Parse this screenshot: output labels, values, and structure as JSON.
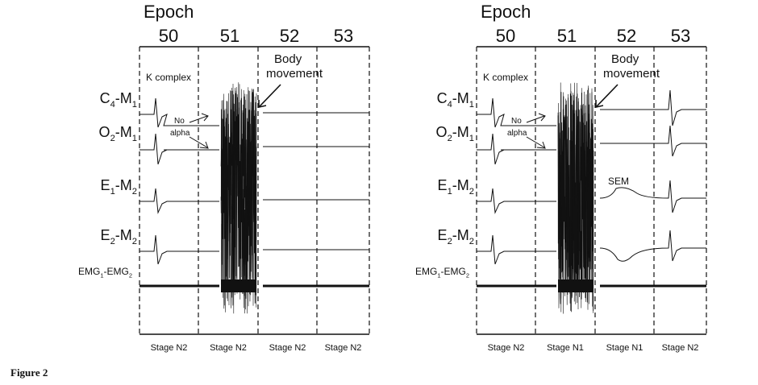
{
  "figure_caption": "Figure 2",
  "panels": [
    {
      "epoch_heading": "Epoch",
      "epochs": [
        "50",
        "51",
        "52",
        "53"
      ],
      "stages": [
        "Stage N2",
        "Stage N2",
        "Stage N2",
        "Stage N2"
      ],
      "annotations": {
        "k_complex": "K complex",
        "body_movement_line1": "Body",
        "body_movement_line2": "movement",
        "no_alpha_line1": "No",
        "no_alpha_line2": "alpha"
      },
      "channels": [
        {
          "main": "C",
          "sub1": "4",
          "mid": "-M",
          "sub2": "1"
        },
        {
          "main": "O",
          "sub1": "2",
          "mid": "-M",
          "sub2": "1"
        },
        {
          "main": "E",
          "sub1": "1",
          "mid": "-M",
          "sub2": "2"
        },
        {
          "main": "E",
          "sub1": "2",
          "mid": "-M",
          "sub2": "2"
        },
        {
          "main": "EMG",
          "sub1": "1",
          "mid": "-EMG",
          "sub2": "2"
        }
      ]
    },
    {
      "epoch_heading": "Epoch",
      "epochs": [
        "50",
        "51",
        "52",
        "53"
      ],
      "stages": [
        "Stage N2",
        "Stage N1",
        "Stage N1",
        "Stage N2"
      ],
      "annotations": {
        "k_complex": "K complex",
        "body_movement_line1": "Body",
        "body_movement_line2": "movement",
        "no_alpha_line1": "No",
        "no_alpha_line2": "alpha",
        "sem": "SEM"
      },
      "channels": [
        {
          "main": "C",
          "sub1": "4",
          "mid": "-M",
          "sub2": "1"
        },
        {
          "main": "O",
          "sub1": "2",
          "mid": "-M",
          "sub2": "1"
        },
        {
          "main": "E",
          "sub1": "1",
          "mid": "-M",
          "sub2": "2"
        },
        {
          "main": "E",
          "sub1": "2",
          "mid": "-M",
          "sub2": "2"
        },
        {
          "main": "EMG",
          "sub1": "1",
          "mid": "-EMG",
          "sub2": "2"
        }
      ]
    }
  ]
}
